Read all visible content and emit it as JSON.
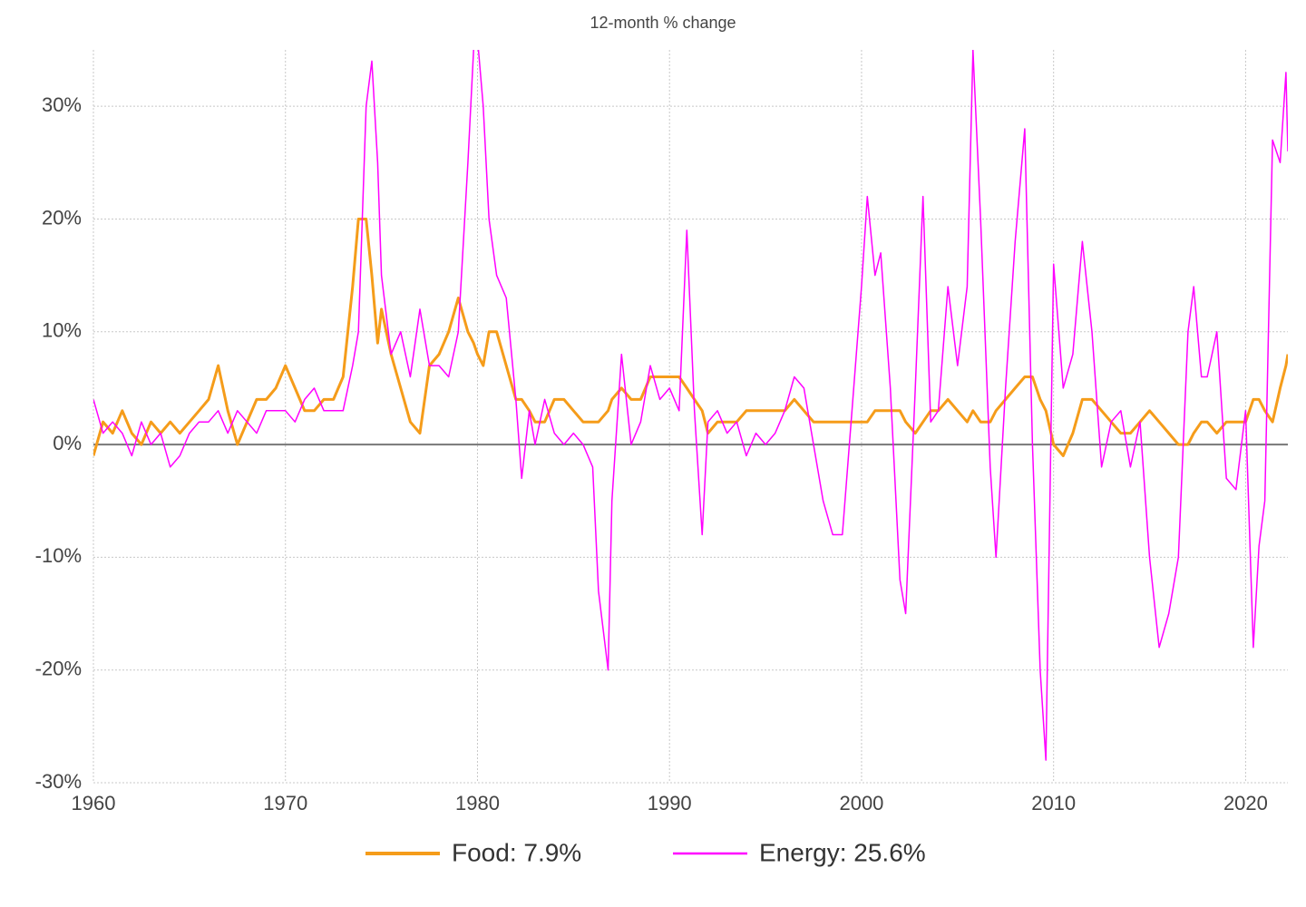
{
  "chart_data": {
    "type": "line",
    "title": "12-month % change",
    "x": [
      1960.0,
      1960.5,
      1961.0,
      1961.5,
      1962.0,
      1962.5,
      1963.0,
      1963.5,
      1964.0,
      1964.5,
      1965.0,
      1965.5,
      1966.0,
      1966.5,
      1967.0,
      1967.5,
      1968.0,
      1968.5,
      1969.0,
      1969.5,
      1970.0,
      1970.5,
      1971.0,
      1971.5,
      1972.0,
      1972.5,
      1973.0,
      1973.5,
      1973.8,
      1974.2,
      1974.5,
      1974.8,
      1975.0,
      1975.5,
      1976.0,
      1976.5,
      1977.0,
      1977.5,
      1978.0,
      1978.5,
      1979.0,
      1979.5,
      1979.8,
      1980.0,
      1980.3,
      1980.6,
      1981.0,
      1981.5,
      1982.0,
      1982.3,
      1982.7,
      1983.0,
      1983.5,
      1984.0,
      1984.5,
      1985.0,
      1985.5,
      1986.0,
      1986.3,
      1986.8,
      1987.0,
      1987.5,
      1988.0,
      1988.5,
      1989.0,
      1989.5,
      1990.0,
      1990.5,
      1990.9,
      1991.3,
      1991.7,
      1992.0,
      1992.5,
      1993.0,
      1993.5,
      1994.0,
      1994.5,
      1995.0,
      1995.5,
      1996.0,
      1996.5,
      1997.0,
      1997.5,
      1998.0,
      1998.5,
      1999.0,
      1999.5,
      2000.0,
      2000.3,
      2000.7,
      2001.0,
      2001.5,
      2002.0,
      2002.3,
      2002.8,
      2003.2,
      2003.6,
      2004.0,
      2004.5,
      2005.0,
      2005.5,
      2005.8,
      2006.2,
      2006.7,
      2007.0,
      2007.5,
      2008.0,
      2008.5,
      2008.9,
      2009.3,
      2009.6,
      2010.0,
      2010.5,
      2011.0,
      2011.5,
      2012.0,
      2012.5,
      2013.0,
      2013.5,
      2014.0,
      2014.5,
      2015.0,
      2015.5,
      2016.0,
      2016.5,
      2017.0,
      2017.3,
      2017.7,
      2018.0,
      2018.5,
      2019.0,
      2019.5,
      2020.0,
      2020.4,
      2020.7,
      2021.0,
      2021.4,
      2021.8,
      2022.1,
      2022.2
    ],
    "series": [
      {
        "name": "Food: 7.9%",
        "color": "#f59c1a",
        "width": 3,
        "values": [
          -1,
          2,
          1,
          3,
          1,
          0,
          2,
          1,
          2,
          1,
          2,
          3,
          4,
          7,
          3,
          0,
          2,
          4,
          4,
          5,
          7,
          5,
          3,
          3,
          4,
          4,
          6,
          14,
          20,
          20,
          15,
          9,
          12,
          8,
          5,
          2,
          1,
          7,
          8,
          10,
          13,
          10,
          9,
          8,
          7,
          10,
          10,
          7,
          4,
          4,
          3,
          2,
          2,
          4,
          4,
          3,
          2,
          2,
          2,
          3,
          4,
          5,
          4,
          4,
          6,
          6,
          6,
          6,
          5,
          4,
          3,
          1,
          2,
          2,
          2,
          3,
          3,
          3,
          3,
          3,
          4,
          3,
          2,
          2,
          2,
          2,
          2,
          2,
          2,
          3,
          3,
          3,
          3,
          2,
          1,
          2,
          3,
          3,
          4,
          3,
          2,
          3,
          2,
          2,
          3,
          4,
          5,
          6,
          6,
          4,
          3,
          0,
          -1,
          1,
          4,
          4,
          3,
          2,
          1,
          1,
          2,
          3,
          2,
          1,
          0,
          0,
          1,
          2,
          2,
          1,
          2,
          2,
          2,
          4,
          4,
          3,
          2,
          5,
          7,
          8
        ]
      },
      {
        "name": "Energy: 25.6%",
        "color": "#ff00ff",
        "width": 1.5,
        "values": [
          4,
          1,
          2,
          1,
          -1,
          2,
          0,
          1,
          -2,
          -1,
          1,
          2,
          2,
          3,
          1,
          3,
          2,
          1,
          3,
          3,
          3,
          2,
          4,
          5,
          3,
          3,
          3,
          7,
          10,
          30,
          34,
          25,
          15,
          8,
          10,
          6,
          12,
          7,
          7,
          6,
          10,
          25,
          35,
          36,
          30,
          20,
          15,
          13,
          4,
          -3,
          3,
          0,
          4,
          1,
          0,
          1,
          0,
          -2,
          -13,
          -20,
          -5,
          8,
          0,
          2,
          7,
          4,
          5,
          3,
          19,
          3,
          -8,
          2,
          3,
          1,
          2,
          -1,
          1,
          0,
          1,
          3,
          6,
          5,
          0,
          -5,
          -8,
          -8,
          3,
          14,
          22,
          15,
          17,
          5,
          -12,
          -15,
          5,
          22,
          2,
          3,
          14,
          7,
          14,
          35,
          20,
          -2,
          -10,
          5,
          18,
          28,
          0,
          -20,
          -28,
          16,
          5,
          8,
          18,
          10,
          -2,
          2,
          3,
          -2,
          2,
          -10,
          -18,
          -15,
          -10,
          10,
          14,
          6,
          6,
          10,
          -3,
          -4,
          3,
          -18,
          -9,
          -5,
          27,
          25,
          33,
          26
        ]
      }
    ],
    "xlim": [
      1960,
      2022.2
    ],
    "xticks": [
      1960,
      1970,
      1980,
      1990,
      2000,
      2010,
      2020
    ],
    "ylim": [
      -30,
      35
    ],
    "yticks": [
      {
        "value": -30,
        "label": "-30%"
      },
      {
        "value": -20,
        "label": "-20%"
      },
      {
        "value": -10,
        "label": "-10%"
      },
      {
        "value": 0,
        "label": "0%"
      },
      {
        "value": 10,
        "label": "10%"
      },
      {
        "value": 20,
        "label": "20%"
      },
      {
        "value": 30,
        "label": "30%"
      }
    ],
    "grid": true,
    "legend": "bottom"
  }
}
